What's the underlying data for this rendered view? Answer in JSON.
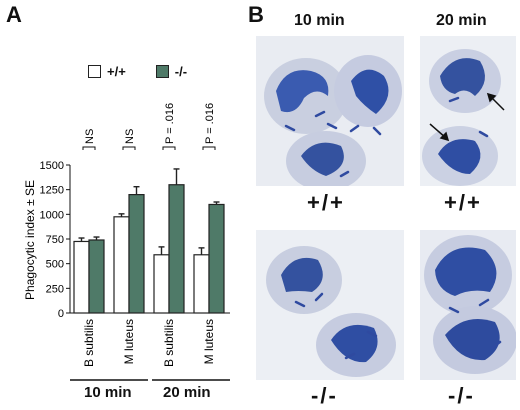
{
  "panels": {
    "a": "A",
    "b": "B"
  },
  "legend": [
    {
      "label": "+/+",
      "color": "#ffffff"
    },
    {
      "label": "-/-",
      "color": "#4f7a68"
    }
  ],
  "chart_data": {
    "type": "bar",
    "ylabel": "Phagocytic index ± SE",
    "ylim": [
      0,
      1500
    ],
    "yticks": [
      "0",
      "250",
      "500",
      "750",
      "1000",
      "1250",
      "1500"
    ],
    "categories": [
      "B subtilis",
      "M luteus",
      "B subtilis",
      "M luteus"
    ],
    "groups": [
      "10 min",
      "20 min"
    ],
    "series": [
      {
        "name": "+/+",
        "color": "#ffffff",
        "values": [
          725,
          975,
          590,
          590
        ],
        "errors": [
          35,
          30,
          80,
          70
        ]
      },
      {
        "name": "-/-",
        "color": "#4f7a68",
        "values": [
          740,
          1200,
          1300,
          1100
        ],
        "errors": [
          30,
          80,
          160,
          25
        ]
      }
    ],
    "significance": [
      "NS",
      "NS",
      "P = .016",
      "P = .016"
    ]
  },
  "panel_b": {
    "col_headers": [
      "10 min",
      "20 min"
    ],
    "genotypes": [
      "+/+",
      "+/+",
      "-/-",
      "-/-"
    ]
  }
}
